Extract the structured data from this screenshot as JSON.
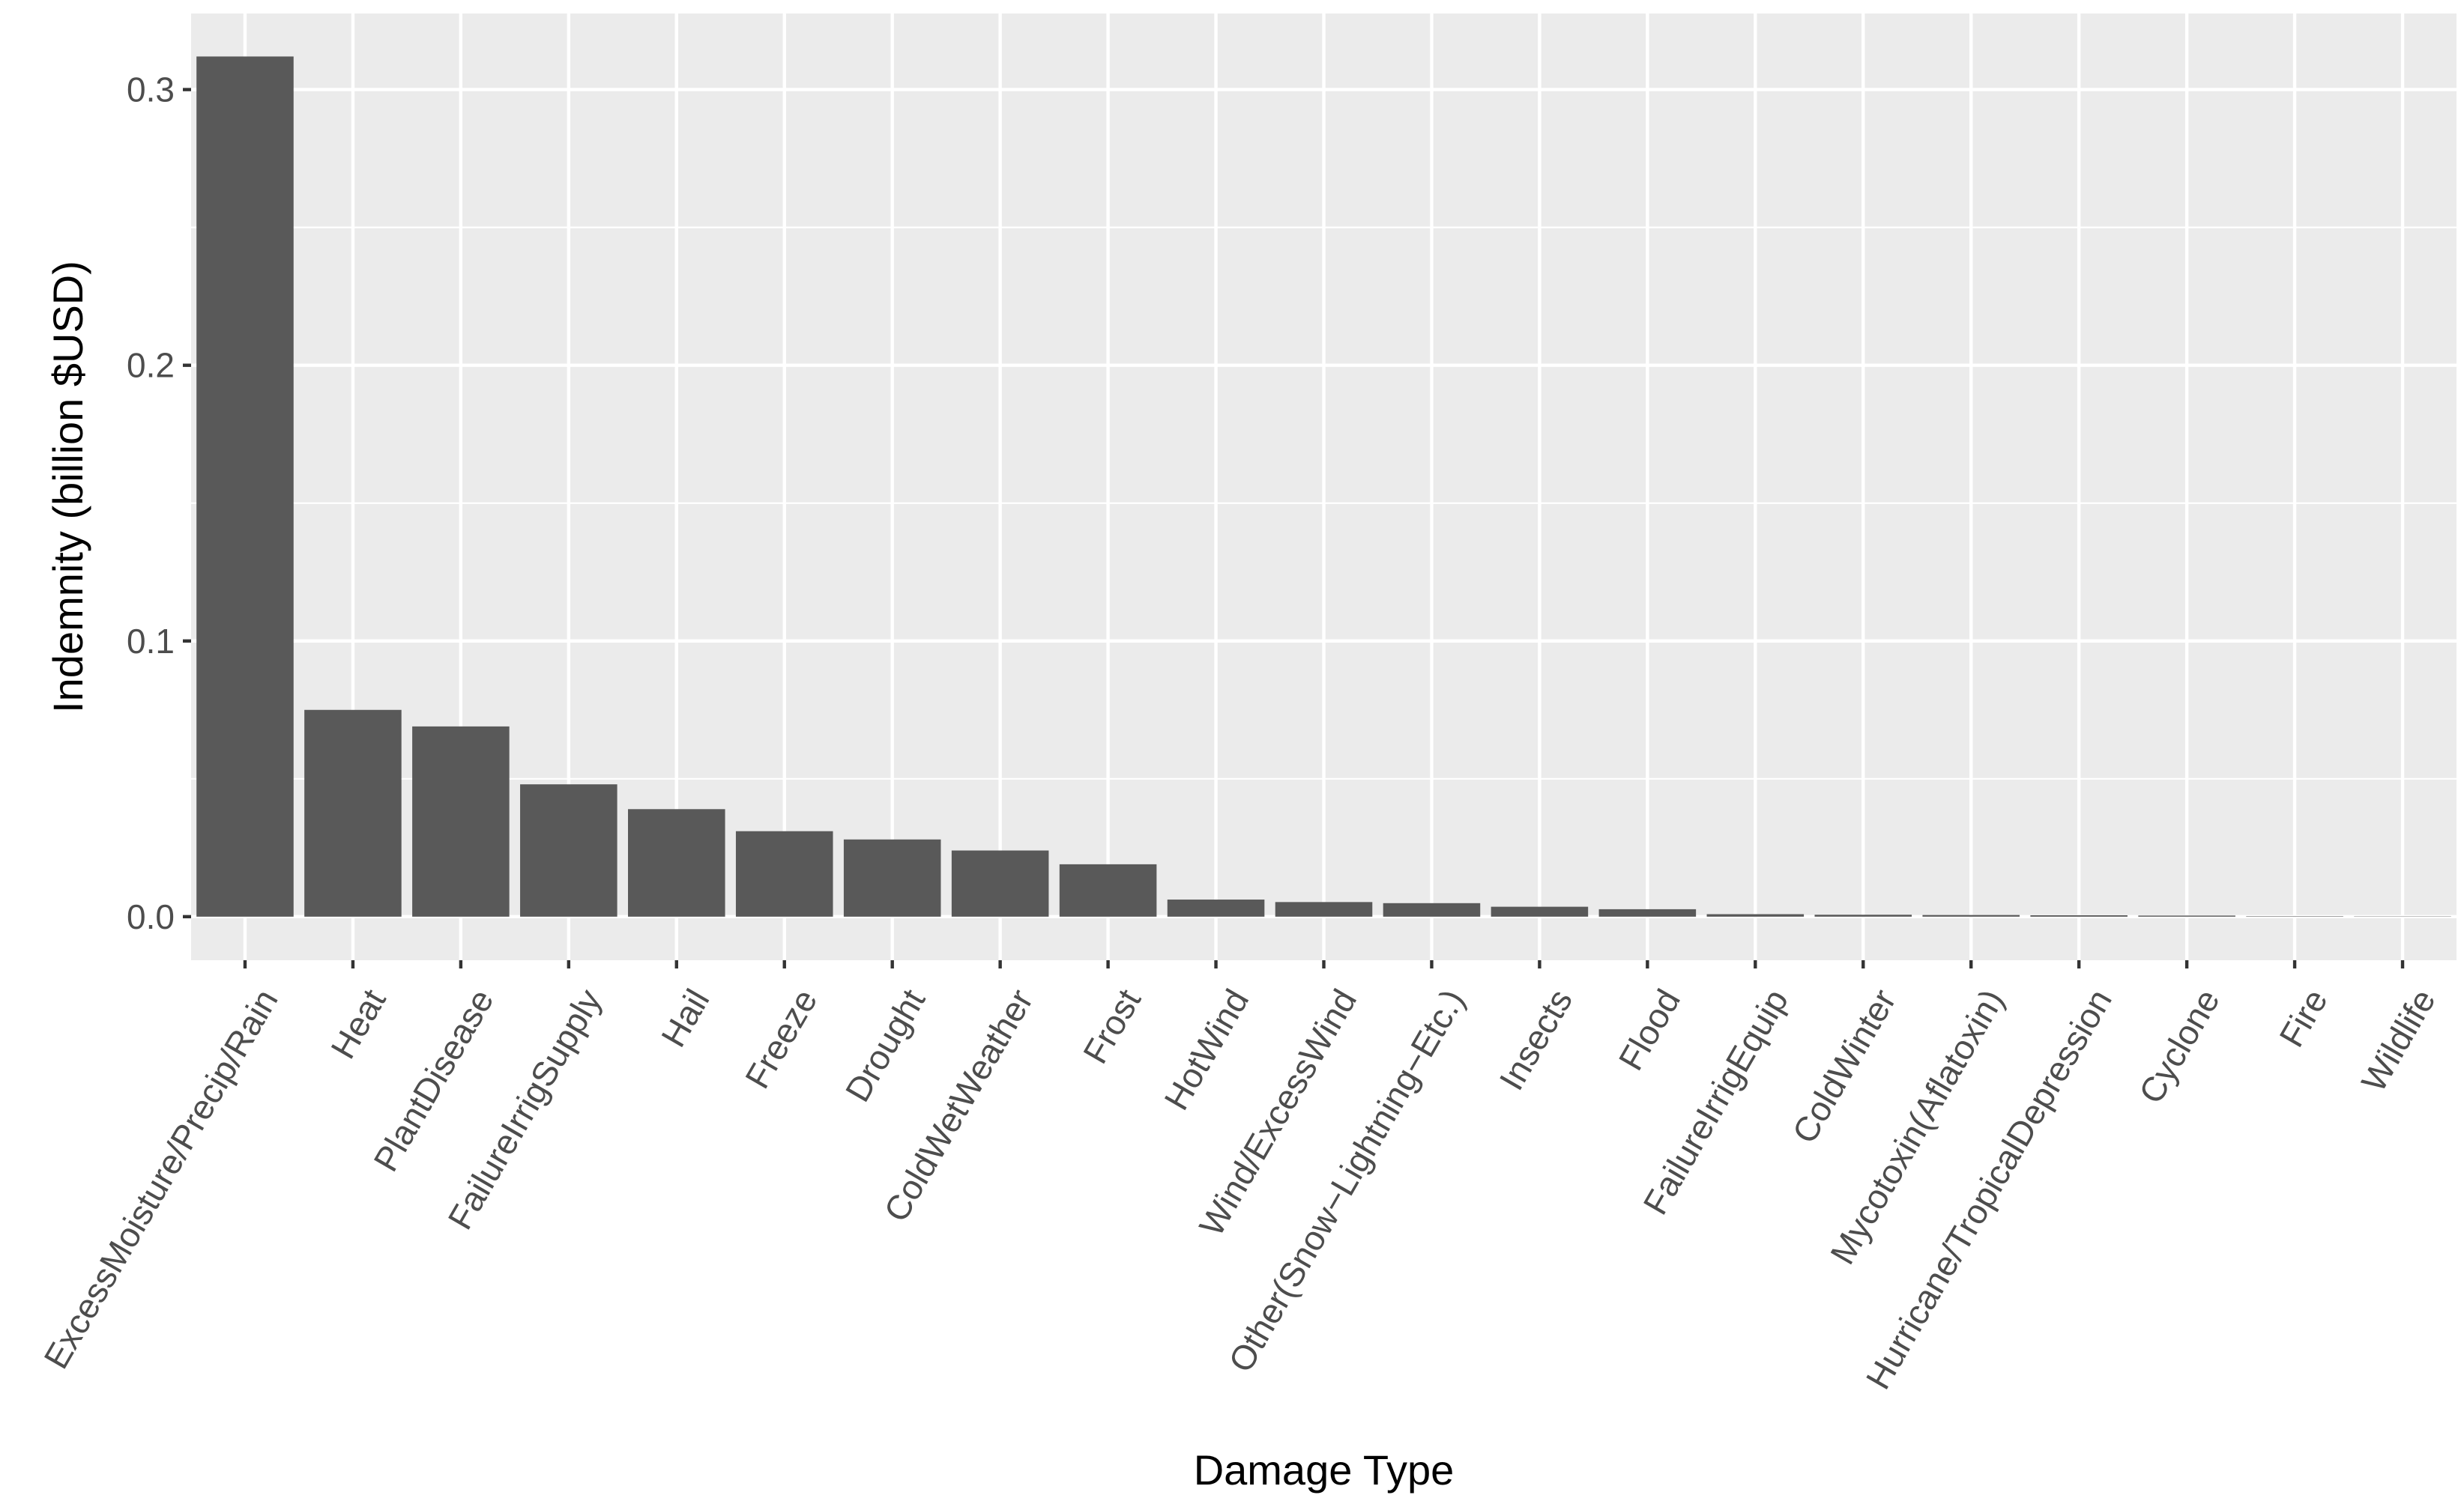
{
  "chart_data": {
    "type": "bar",
    "title": "",
    "xlabel": "Damage Type",
    "ylabel": "Indemnity (billion $USD)",
    "categories": [
      "ExcessMoisture/Precip/Rain",
      "Heat",
      "PlantDisease",
      "FailureIrrigSupply",
      "Hail",
      "Freeze",
      "Drought",
      "ColdWetWeather",
      "Frost",
      "HotWind",
      "Wind/ExcessWind",
      "Other(Snow−Lightning−Etc.)",
      "Insects",
      "Flood",
      "FailureIrrigEquip",
      "ColdWinter",
      "Mycotoxin(Aflatoxin)",
      "Hurricane/TropicalDepression",
      "Cyclone",
      "Fire",
      "Wildlife"
    ],
    "values": [
      0.312,
      0.075,
      0.069,
      0.048,
      0.039,
      0.031,
      0.028,
      0.024,
      0.019,
      0.0062,
      0.0053,
      0.0049,
      0.0036,
      0.0027,
      0.0009,
      0.0007,
      0.0006,
      0.0005,
      0.0004,
      0.00015,
      0.0001
    ],
    "ylim": [
      -0.0158,
      0.3276
    ],
    "y_ticks": [
      0.0,
      0.1,
      0.2,
      0.3
    ],
    "y_tick_labels": [
      "0.0",
      "0.1",
      "0.2",
      "0.3"
    ],
    "grid": true,
    "legend": "none",
    "colors": {
      "panel_background": "#ebebeb",
      "grid_major": "#ffffff",
      "bar_fill": "#595959",
      "tick_text": "#4d4d4d",
      "tick_mark": "#333333",
      "axis_title": "#000000"
    }
  }
}
